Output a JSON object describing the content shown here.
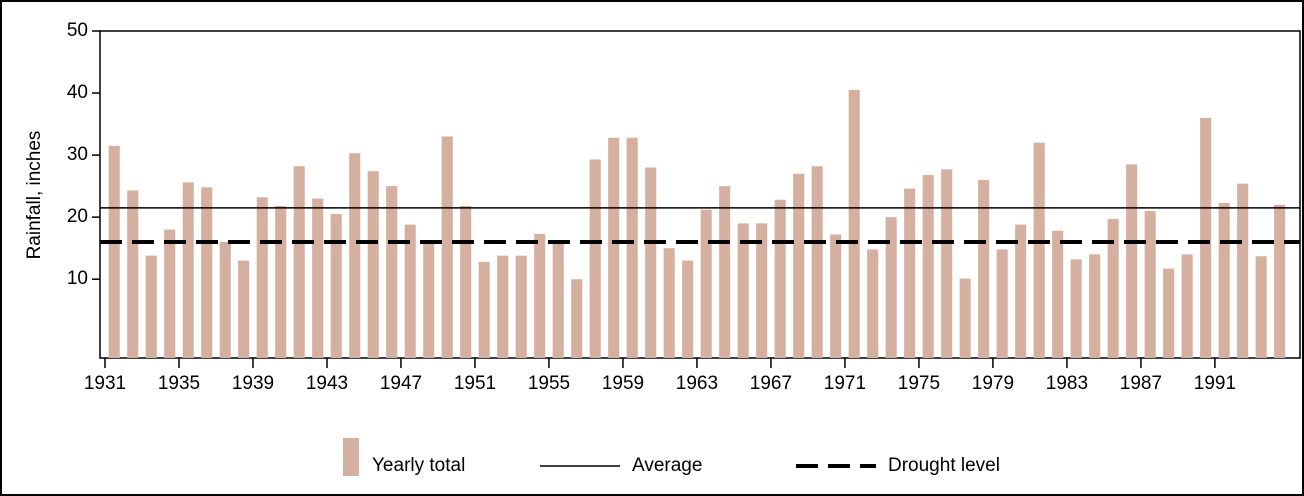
{
  "chart_data": {
    "type": "bar",
    "y_label": "Rainfall, inches",
    "x": [
      1931,
      1932,
      1933,
      1934,
      1935,
      1936,
      1937,
      1938,
      1939,
      1940,
      1941,
      1942,
      1943,
      1944,
      1945,
      1946,
      1947,
      1948,
      1949,
      1950,
      1951,
      1952,
      1953,
      1954,
      1955,
      1956,
      1957,
      1958,
      1959,
      1960,
      1961,
      1962,
      1963,
      1964,
      1965,
      1966,
      1967,
      1968,
      1969,
      1970,
      1971,
      1972,
      1973,
      1974,
      1975,
      1976,
      1977,
      1978,
      1979,
      1980,
      1981,
      1982,
      1983,
      1984,
      1985,
      1986,
      1987,
      1988,
      1989,
      1990,
      1991,
      1992,
      1993,
      1994
    ],
    "series": [
      {
        "name": "Yearly total",
        "color": "#d5b0a0",
        "values": [
          31.5,
          24.3,
          13.8,
          18,
          25.6,
          24.8,
          16,
          13,
          23.2,
          21.8,
          28.2,
          23,
          20.5,
          30.3,
          27.4,
          25,
          18.8,
          16,
          33,
          21.8,
          12.8,
          13.8,
          13.8,
          17.3,
          16,
          10,
          29.3,
          32.8,
          32.8,
          28,
          15,
          13,
          21.2,
          25,
          19,
          19,
          22.8,
          27,
          28.2,
          17.2,
          40.5,
          14.8,
          20,
          24.6,
          26.8,
          27.7,
          10.1,
          26,
          14.8,
          18.8,
          32,
          17.8,
          13.2,
          14,
          19.7,
          28.5,
          21,
          11.7,
          14,
          36,
          22.3,
          25.4,
          13.7,
          22
        ]
      }
    ],
    "reference_lines": [
      {
        "name": "Average",
        "value": 21.5,
        "style": "solid",
        "color": "#000000"
      },
      {
        "name": "Drought level",
        "value": 16,
        "style": "dashed",
        "color": "#000000"
      }
    ],
    "xlim": [
      1930.73,
      1995.6
    ],
    "xticks": [
      1931,
      1935,
      1939,
      1943,
      1947,
      1951,
      1955,
      1959,
      1963,
      1967,
      1971,
      1975,
      1979,
      1983,
      1987,
      1991
    ],
    "ylim": [
      -2.7,
      50
    ],
    "yticks": [
      10,
      20,
      30,
      40,
      50
    ]
  }
}
